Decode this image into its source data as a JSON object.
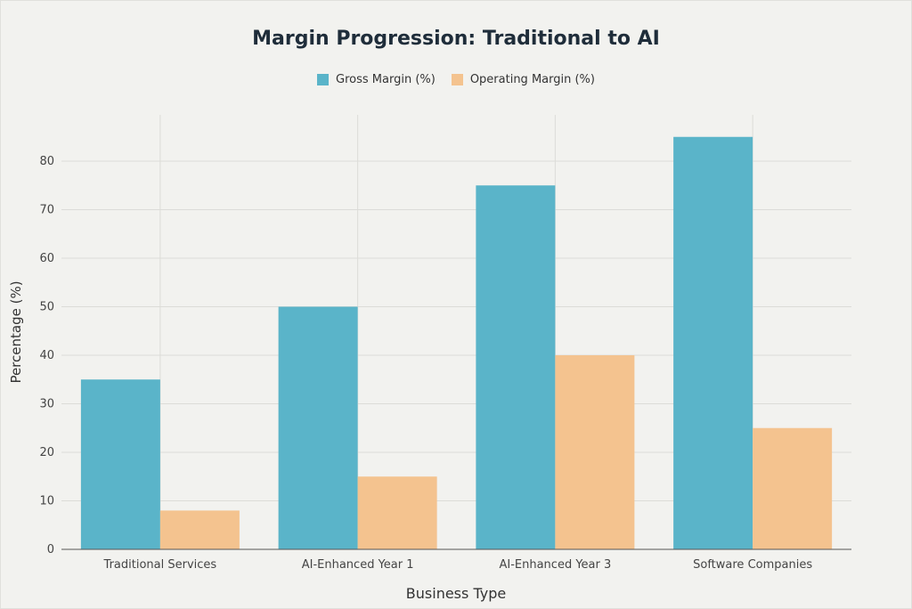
{
  "chart_data": {
    "type": "bar",
    "title": "Margin Progression: Traditional to AI",
    "xlabel": "Business Type",
    "ylabel": "Percentage (%)",
    "categories": [
      "Traditional Services",
      "AI-Enhanced Year 1",
      "AI-Enhanced Year 3",
      "Software Companies"
    ],
    "series": [
      {
        "name": "Gross Margin (%)",
        "color": "#5ab4c9",
        "values": [
          35,
          50,
          75,
          85
        ]
      },
      {
        "name": "Operating Margin (%)",
        "color": "#f4c38f",
        "values": [
          8,
          15,
          40,
          25
        ]
      }
    ],
    "yticks": [
      0,
      10,
      20,
      30,
      40,
      50,
      60,
      70,
      80
    ],
    "ylim": [
      0,
      89
    ],
    "grid": true,
    "legend_position": "top-center"
  }
}
